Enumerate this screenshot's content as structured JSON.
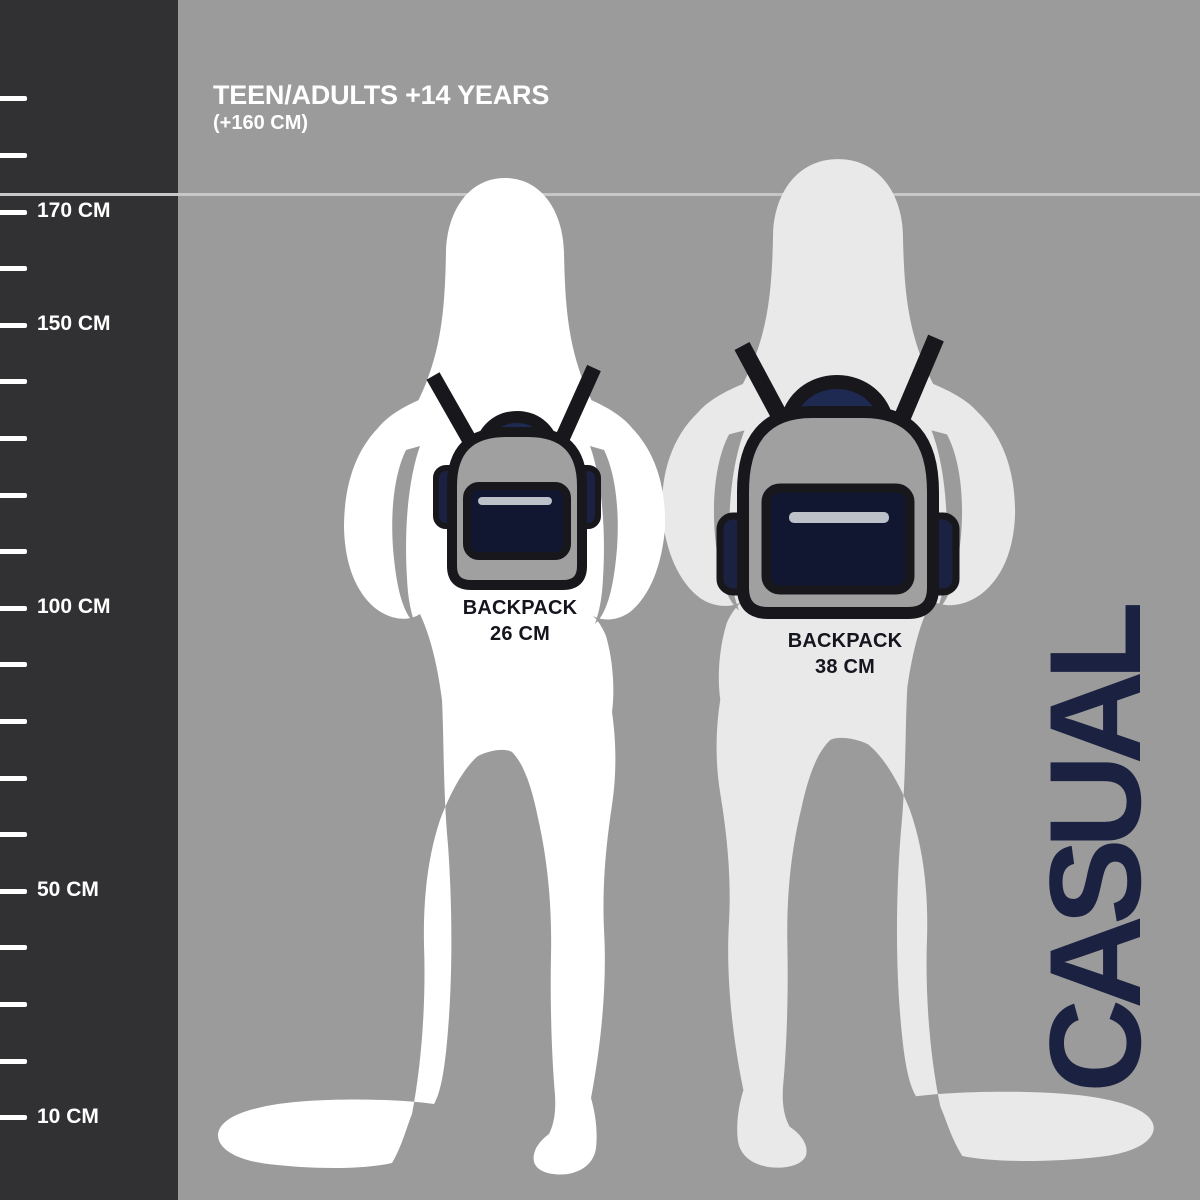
{
  "header": {
    "title": "TEEN/ADULTS +14 YEARS",
    "subtitle": "(+160 CM)"
  },
  "ruler": {
    "unit": "CM",
    "ticks": [
      {
        "cm": 190,
        "label": ""
      },
      {
        "cm": 180,
        "label": ""
      },
      {
        "cm": 170,
        "label": "170 CM"
      },
      {
        "cm": 160,
        "label": ""
      },
      {
        "cm": 150,
        "label": "150 CM"
      },
      {
        "cm": 140,
        "label": ""
      },
      {
        "cm": 130,
        "label": ""
      },
      {
        "cm": 120,
        "label": ""
      },
      {
        "cm": 110,
        "label": ""
      },
      {
        "cm": 100,
        "label": "100 CM"
      },
      {
        "cm": 90,
        "label": ""
      },
      {
        "cm": 80,
        "label": ""
      },
      {
        "cm": 70,
        "label": ""
      },
      {
        "cm": 60,
        "label": ""
      },
      {
        "cm": 50,
        "label": "50 CM"
      },
      {
        "cm": 40,
        "label": ""
      },
      {
        "cm": 30,
        "label": ""
      },
      {
        "cm": 20,
        "label": ""
      },
      {
        "cm": 10,
        "label": "10 CM"
      }
    ]
  },
  "backpacks": [
    {
      "name": "BACKPACK",
      "size": "26 CM"
    },
    {
      "name": "BACKPACK",
      "size": "38 CM"
    }
  ],
  "side_label": "CASUAL",
  "colors": {
    "background": "#9b9b9b",
    "ruler_bar": "#313133",
    "tick_white": "#ffffff",
    "reference_line": "#c7c7c7",
    "silhouette_1": "#ffffff",
    "silhouette_2": "#e9e9e9",
    "backpack_body": "#a0a0a0",
    "backpack_outline": "#17171c",
    "backpack_pocket": "#121731",
    "backpack_side_pocket": "#1b2140",
    "handle_inner": "#1e2a52",
    "zipper": "#bcc0c9",
    "label_text": "#15151e",
    "casual_text": "#1b2140"
  }
}
